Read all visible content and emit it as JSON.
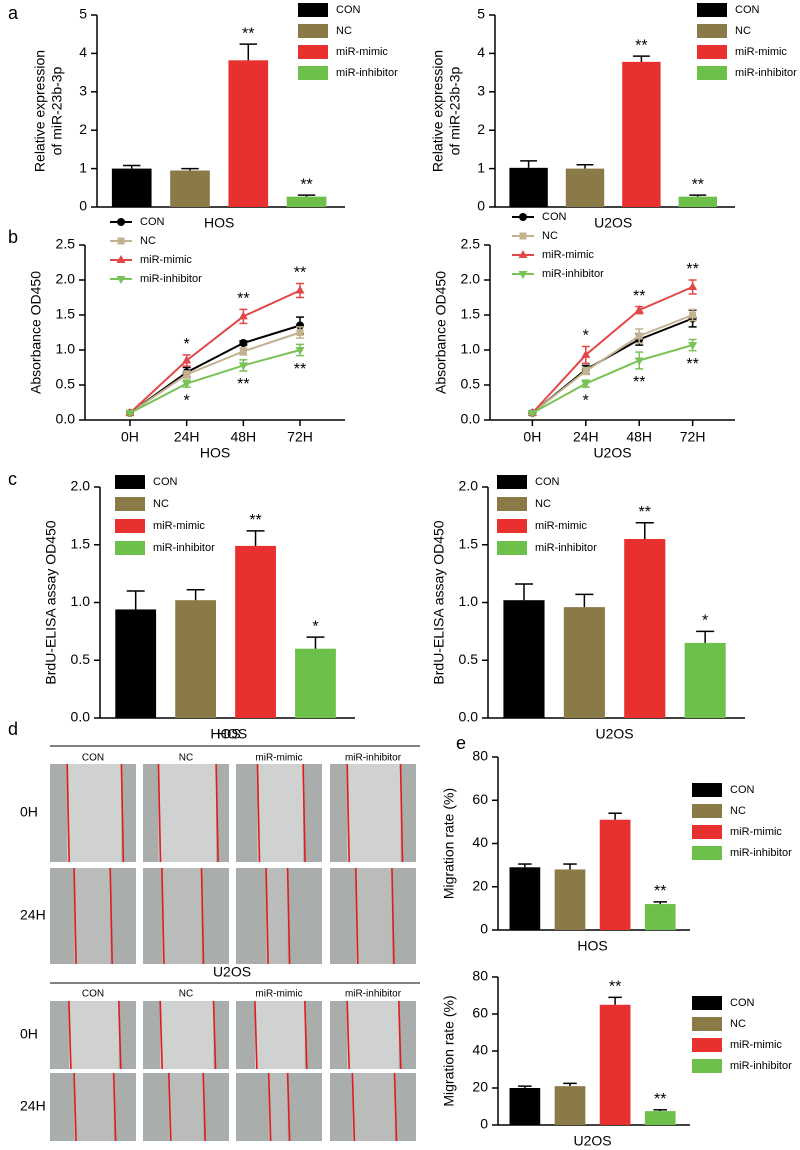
{
  "panel_labels": [
    "a",
    "b",
    "c",
    "d",
    "e"
  ],
  "chart_data": [
    {
      "type": "bar",
      "xlabel": "HOS",
      "ylabel": [
        "Relative expression",
        "of miR-23b-3p"
      ],
      "ylim": [
        0,
        5
      ],
      "yticks": [
        0,
        1,
        2,
        3,
        4,
        5
      ],
      "series": [
        {
          "name": "CON",
          "color": "#000000",
          "values": [
            1.0
          ],
          "errors": [
            0.08
          ]
        },
        {
          "name": "NC",
          "color": "#8a7a48",
          "values": [
            0.95
          ],
          "errors": [
            0.05
          ]
        },
        {
          "name": "miR-mimic",
          "color": "#e8312f",
          "values": [
            3.82
          ],
          "errors": [
            0.42
          ],
          "sig": [
            "**"
          ]
        },
        {
          "name": "miR-inhibitor",
          "color": "#6dc14b",
          "values": [
            0.27
          ],
          "errors": [
            0.04
          ],
          "sig": [
            "**"
          ]
        }
      ]
    },
    {
      "type": "bar",
      "xlabel": "U2OS",
      "ylabel": [
        "Relative expression",
        "of miR-23b-3p"
      ],
      "ylim": [
        0,
        5
      ],
      "yticks": [
        0,
        1,
        2,
        3,
        4,
        5
      ],
      "series": [
        {
          "name": "CON",
          "color": "#000000",
          "values": [
            1.02
          ],
          "errors": [
            0.18
          ]
        },
        {
          "name": "NC",
          "color": "#8a7a48",
          "values": [
            1.0
          ],
          "errors": [
            0.1
          ]
        },
        {
          "name": "miR-mimic",
          "color": "#e8312f",
          "values": [
            3.78
          ],
          "errors": [
            0.15
          ],
          "sig": [
            "**"
          ]
        },
        {
          "name": "miR-inhibitor",
          "color": "#6dc14b",
          "values": [
            0.27
          ],
          "errors": [
            0.04
          ],
          "sig": [
            "**"
          ]
        }
      ]
    },
    {
      "type": "line",
      "xlabel": "HOS",
      "ylabel": "Absorbance OD450",
      "categories": [
        "0H",
        "24H",
        "48H",
        "72H"
      ],
      "ylim": [
        0,
        2.5
      ],
      "yticks": [
        {
          "value": 0,
          "label": "0.0"
        },
        {
          "value": 0.5,
          "label": "0.5"
        },
        {
          "value": 1,
          "label": "1.0"
        },
        {
          "value": 1.5,
          "label": "1.5"
        },
        {
          "value": 2,
          "label": "2.0"
        },
        {
          "value": 2.5,
          "label": "2.5"
        }
      ],
      "series": [
        {
          "name": "CON",
          "color": "#000000",
          "marker": "circle",
          "values": [
            0.1,
            0.68,
            1.1,
            1.35
          ],
          "errors": [
            0.02,
            0.07,
            0.03,
            0.12
          ]
        },
        {
          "name": "NC",
          "color": "#c2b290",
          "marker": "square",
          "values": [
            0.1,
            0.65,
            0.98,
            1.25
          ],
          "errors": [
            0.02,
            0.05,
            0.05,
            0.08
          ]
        },
        {
          "name": "miR-mimic",
          "color": "#e24848",
          "marker": "triangle",
          "values": [
            0.1,
            0.85,
            1.48,
            1.85
          ],
          "errors": [
            0.02,
            0.08,
            0.1,
            0.1
          ],
          "sig": [
            null,
            "*",
            "**",
            "**"
          ],
          "sig_position": "above"
        },
        {
          "name": "miR-inhibitor",
          "color": "#78c257",
          "marker": "triangle-down",
          "values": [
            0.1,
            0.52,
            0.78,
            1.0
          ],
          "errors": [
            0.02,
            0.05,
            0.08,
            0.08
          ],
          "sig": [
            null,
            "*",
            "**",
            "**"
          ],
          "sig_position": "below"
        }
      ]
    },
    {
      "type": "line",
      "xlabel": "U2OS",
      "ylabel": "Absorbance OD450",
      "categories": [
        "0H",
        "24H",
        "48H",
        "72H"
      ],
      "ylim": [
        0,
        2.5
      ],
      "yticks": [
        {
          "value": 0,
          "label": "0.0"
        },
        {
          "value": 0.5,
          "label": "0.5"
        },
        {
          "value": 1,
          "label": "1.0"
        },
        {
          "value": 1.5,
          "label": "1.5"
        },
        {
          "value": 2,
          "label": "2.0"
        },
        {
          "value": 2.5,
          "label": "2.5"
        }
      ],
      "series": [
        {
          "name": "CON",
          "color": "#000000",
          "marker": "circle",
          "values": [
            0.1,
            0.72,
            1.15,
            1.45
          ],
          "errors": [
            0.02,
            0.06,
            0.08,
            0.12
          ]
        },
        {
          "name": "NC",
          "color": "#c2b290",
          "marker": "square",
          "values": [
            0.1,
            0.7,
            1.2,
            1.5
          ],
          "errors": [
            0.02,
            0.05,
            0.1,
            0.08
          ]
        },
        {
          "name": "miR-mimic",
          "color": "#e24848",
          "marker": "triangle",
          "values": [
            0.1,
            0.93,
            1.57,
            1.9
          ],
          "errors": [
            0.02,
            0.12,
            0.05,
            0.1
          ],
          "sig": [
            null,
            "*",
            "**",
            "**"
          ],
          "sig_position": "above"
        },
        {
          "name": "miR-inhibitor",
          "color": "#78c257",
          "marker": "triangle-down",
          "values": [
            0.1,
            0.52,
            0.85,
            1.07
          ],
          "errors": [
            0.02,
            0.05,
            0.12,
            0.08
          ],
          "sig": [
            null,
            "*",
            "**",
            "**"
          ],
          "sig_position": "below"
        }
      ]
    },
    {
      "type": "bar",
      "xlabel": "HOS",
      "ylabel": "BrdU-ELISA assay OD450",
      "ylim": [
        0,
        2
      ],
      "yticks": [
        {
          "value": 0,
          "label": "0.0"
        },
        {
          "value": 0.5,
          "label": "0.5"
        },
        {
          "value": 1,
          "label": "1.0"
        },
        {
          "value": 1.5,
          "label": "1.5"
        },
        {
          "value": 2,
          "label": "2.0"
        }
      ],
      "series": [
        {
          "name": "CON",
          "color": "#000000",
          "values": [
            0.94
          ],
          "errors": [
            0.16
          ]
        },
        {
          "name": "NC",
          "color": "#8a7a48",
          "values": [
            1.02
          ],
          "errors": [
            0.09
          ]
        },
        {
          "name": "miR-mimic",
          "color": "#e8312f",
          "values": [
            1.49
          ],
          "errors": [
            0.13
          ],
          "sig": [
            "**"
          ]
        },
        {
          "name": "miR-inhibitor",
          "color": "#6dc14b",
          "values": [
            0.6
          ],
          "errors": [
            0.1
          ],
          "sig": [
            "*"
          ]
        }
      ]
    },
    {
      "type": "bar",
      "xlabel": "U2OS",
      "ylabel": "BrdU-ELISA assay OD450",
      "ylim": [
        0,
        2
      ],
      "yticks": [
        {
          "value": 0,
          "label": "0.0"
        },
        {
          "value": 0.5,
          "label": "0.5"
        },
        {
          "value": 1,
          "label": "1.0"
        },
        {
          "value": 1.5,
          "label": "1.5"
        },
        {
          "value": 2,
          "label": "2.0"
        }
      ],
      "series": [
        {
          "name": "CON",
          "color": "#000000",
          "values": [
            1.02
          ],
          "errors": [
            0.14
          ]
        },
        {
          "name": "NC",
          "color": "#8a7a48",
          "values": [
            0.96
          ],
          "errors": [
            0.11
          ]
        },
        {
          "name": "miR-mimic",
          "color": "#e8312f",
          "values": [
            1.55
          ],
          "errors": [
            0.14
          ],
          "sig": [
            "**"
          ]
        },
        {
          "name": "miR-inhibitor",
          "color": "#6dc14b",
          "values": [
            0.65
          ],
          "errors": [
            0.1
          ],
          "sig": [
            "*"
          ]
        }
      ]
    },
    {
      "type": "bar",
      "xlabel": "HOS",
      "ylabel": "Migration rate (%)",
      "ylim": [
        0,
        80
      ],
      "yticks": [
        0,
        20,
        40,
        60,
        80
      ],
      "series": [
        {
          "name": "CON",
          "color": "#000000",
          "values": [
            29
          ],
          "errors": [
            1.5
          ]
        },
        {
          "name": "NC",
          "color": "#8a7a48",
          "values": [
            28
          ],
          "errors": [
            2.5
          ]
        },
        {
          "name": "miR-mimic",
          "color": "#e8312f",
          "values": [
            51
          ],
          "errors": [
            3
          ]
        },
        {
          "name": "miR-inhibitor",
          "color": "#6dc14b",
          "values": [
            12
          ],
          "errors": [
            1
          ],
          "sig": [
            "**"
          ]
        }
      ]
    },
    {
      "type": "bar",
      "xlabel": "U2OS",
      "ylabel": "Migration rate (%)",
      "ylim": [
        0,
        80
      ],
      "yticks": [
        0,
        20,
        40,
        60,
        80
      ],
      "series": [
        {
          "name": "CON",
          "color": "#000000",
          "values": [
            20
          ],
          "errors": [
            1
          ]
        },
        {
          "name": "NC",
          "color": "#8a7a48",
          "values": [
            21
          ],
          "errors": [
            1.5
          ]
        },
        {
          "name": "miR-mimic",
          "color": "#e8312f",
          "values": [
            65
          ],
          "errors": [
            4
          ],
          "sig": [
            "**"
          ]
        },
        {
          "name": "miR-inhibitor",
          "color": "#6dc14b",
          "values": [
            7.5
          ],
          "errors": [
            0.7
          ],
          "sig": [
            "**"
          ]
        }
      ]
    }
  ],
  "wound_healing": [
    {
      "title": "HOS",
      "columns": [
        "CON",
        "NC",
        "miR-mimic",
        "miR-inhibitor"
      ],
      "rows": [
        "0H",
        "24H"
      ]
    },
    {
      "title": "U2OS",
      "columns": [
        "CON",
        "NC",
        "miR-mimic",
        "miR-inhibitor"
      ],
      "rows": [
        "0H",
        "24H"
      ]
    }
  ]
}
